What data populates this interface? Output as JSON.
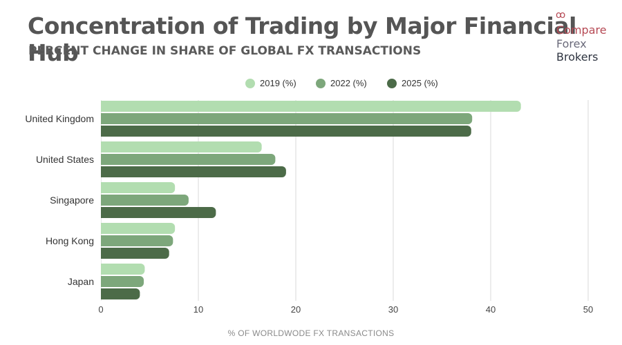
{
  "chart_data": {
    "type": "bar",
    "orientation": "horizontal",
    "title": "Concentration of Trading by Major Financial Hub",
    "subtitle": "PERCENT CHANGE IN SHARE OF GLOBAL FX TRANSACTIONS",
    "categories": [
      "United Kingdom",
      "United States",
      "Singapore",
      "Hong Kong",
      "Japan"
    ],
    "series": [
      {
        "name": "2019 (%)",
        "color": "#b2ddb0",
        "values": [
          43.1,
          16.5,
          7.6,
          7.6,
          4.5
        ]
      },
      {
        "name": "2022 (%)",
        "color": "#7da77b",
        "values": [
          38.1,
          17.9,
          9.0,
          7.4,
          4.4
        ]
      },
      {
        "name": "2025 (%)",
        "color": "#4c6b48",
        "values": [
          38.0,
          19.0,
          11.8,
          7.0,
          4.0
        ]
      }
    ],
    "xlabel": "% OF WORLDWODE FX TRANSACTIONS",
    "ylabel": "",
    "xlim": [
      0,
      50
    ],
    "xticks": [
      0,
      10,
      20,
      30,
      40,
      50
    ],
    "grid": true,
    "legend_position": "top"
  },
  "logo": {
    "dots": "ꝏ",
    "line1": "Compare",
    "line2": "Forex",
    "line3": "Brokers"
  }
}
